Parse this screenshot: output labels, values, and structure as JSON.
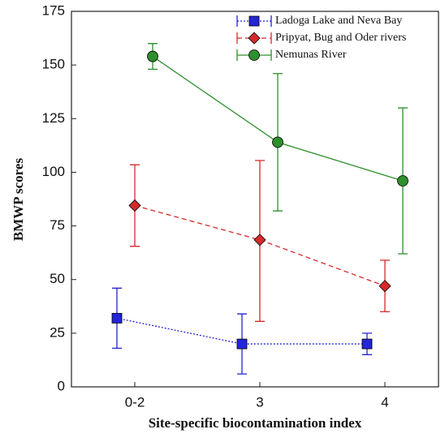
{
  "chart_data": {
    "type": "line",
    "xlabel": "Site-specific biocontamination index",
    "ylabel": "BMWP  scores",
    "categories": [
      "0-2",
      "3",
      "4"
    ],
    "ylim": [
      0,
      175
    ],
    "yticks": [
      0,
      25,
      50,
      75,
      100,
      125,
      150,
      175
    ],
    "legend": "top-right",
    "series": [
      {
        "name": "Ladoga Lake and Neva Bay",
        "color": "#2424d8",
        "marker": "square",
        "line_style": "dotted",
        "values": [
          32,
          20,
          20
        ],
        "error_minus": [
          14,
          14,
          5
        ],
        "error_plus": [
          14,
          14,
          5
        ]
      },
      {
        "name": "Pripyat, Bug and Oder rivers",
        "color": "#d42a2a",
        "marker": "diamond",
        "line_style": "dashed",
        "values": [
          84.5,
          68.5,
          47
        ],
        "error_minus": [
          19,
          38,
          12
        ],
        "error_plus": [
          19,
          37,
          12
        ]
      },
      {
        "name": "Nemunas River",
        "color": "#2e8f2e",
        "marker": "circle",
        "line_style": "solid",
        "values": [
          154,
          114,
          96
        ],
        "error_minus": [
          6,
          32,
          34
        ],
        "error_plus": [
          6,
          32,
          34
        ]
      }
    ]
  }
}
